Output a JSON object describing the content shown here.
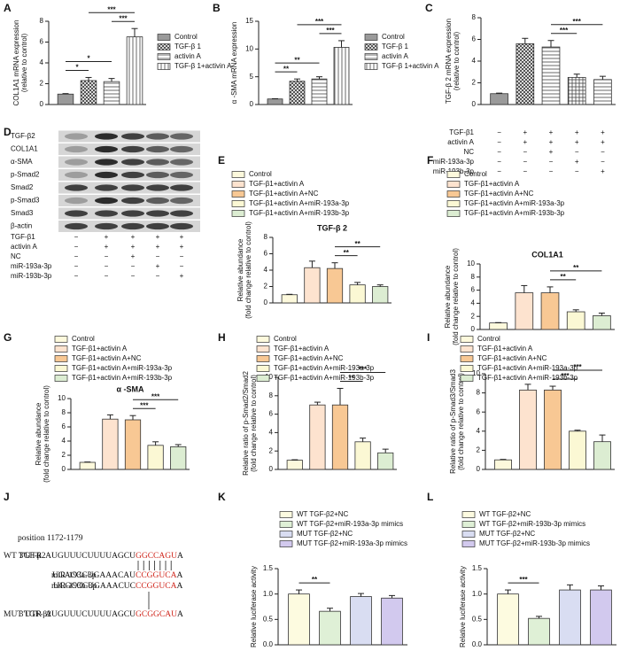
{
  "chart_data": [
    {
      "type": "bar",
      "panel": "A",
      "ylabel": [
        "COL1A1 mRNA expression",
        "(relative to control)"
      ],
      "ylim": [
        0,
        8
      ],
      "yticks": [
        0,
        2,
        4,
        6,
        8
      ],
      "series": [
        {
          "name": "Control",
          "color": "#9a9a9a",
          "pattern": "solid",
          "values": [
            1
          ],
          "errors": [
            0.05
          ]
        },
        {
          "name": "TGF-β 1",
          "color": "#333333",
          "pattern": "crosshatch",
          "values": [
            2.3
          ],
          "errors": [
            0.3
          ]
        },
        {
          "name": "activin A",
          "color": "#444444",
          "pattern": "hlines",
          "values": [
            2.2
          ],
          "errors": [
            0.3
          ]
        },
        {
          "name": "TGF-β 1+activin A",
          "color": "#444444",
          "pattern": "vlines",
          "values": [
            6.5
          ],
          "errors": [
            0.8
          ]
        }
      ],
      "significance": [
        {
          "from": 0,
          "to": 1,
          "label": "*"
        },
        {
          "from": 0,
          "to": 2,
          "label": "*"
        },
        {
          "from": 2,
          "to": 3,
          "label": "***"
        },
        {
          "from": 1,
          "to": 3,
          "label": "***"
        }
      ]
    },
    {
      "type": "bar",
      "panel": "B",
      "ylabel": [
        "α -SMA mRNA expression"
      ],
      "ylim": [
        0,
        15
      ],
      "yticks": [
        0,
        5,
        10,
        15
      ],
      "series": [
        {
          "name": "Control",
          "color": "#9a9a9a",
          "pattern": "solid",
          "values": [
            1
          ],
          "errors": [
            0.05
          ]
        },
        {
          "name": "TGF-β 1",
          "color": "#333333",
          "pattern": "crosshatch",
          "values": [
            4.2
          ],
          "errors": [
            0.4
          ]
        },
        {
          "name": "activin A",
          "color": "#444444",
          "pattern": "hlines",
          "values": [
            4.6
          ],
          "errors": [
            0.4
          ]
        },
        {
          "name": "TGF-β 1+activin A",
          "color": "#444444",
          "pattern": "vlines",
          "values": [
            10.3
          ],
          "errors": [
            1.2
          ]
        }
      ],
      "significance": [
        {
          "from": 0,
          "to": 1,
          "label": "**"
        },
        {
          "from": 0,
          "to": 2,
          "label": "**"
        },
        {
          "from": 2,
          "to": 3,
          "label": "***"
        },
        {
          "from": 1,
          "to": 3,
          "label": "***"
        }
      ]
    },
    {
      "type": "bar",
      "panel": "C",
      "ylabel": [
        "TGF-β 2 mRNA expression",
        "(relative to control)"
      ],
      "ylim": [
        0,
        8
      ],
      "yticks": [
        0,
        2,
        4,
        6,
        8
      ],
      "series": [
        {
          "color": "#9a9a9a",
          "pattern": "solid",
          "values": [
            1
          ],
          "errors": [
            0.05
          ]
        },
        {
          "color": "#333333",
          "pattern": "crosshatch",
          "values": [
            5.6
          ],
          "errors": [
            0.5
          ]
        },
        {
          "color": "#444444",
          "pattern": "hlines",
          "values": [
            5.3
          ],
          "errors": [
            0.6
          ]
        },
        {
          "color": "#444444",
          "pattern": "grid",
          "values": [
            2.5
          ],
          "errors": [
            0.3
          ]
        },
        {
          "color": "#444444",
          "pattern": "hlines",
          "values": [
            2.3
          ],
          "errors": [
            0.3
          ]
        }
      ],
      "significance": [
        {
          "from": 2,
          "to": 3,
          "label": "***"
        },
        {
          "from": 2,
          "to": 4,
          "label": "***"
        }
      ],
      "conditions": [
        {
          "label": "TGF-β1",
          "marks": [
            "−",
            "+",
            "+",
            "+",
            "+"
          ]
        },
        {
          "label": "activin A",
          "marks": [
            "−",
            "+",
            "+",
            "+",
            "+"
          ]
        },
        {
          "label": "NC",
          "marks": [
            "−",
            "−",
            "+",
            "−",
            "−"
          ]
        },
        {
          "label": "miR-193a-3p",
          "marks": [
            "−",
            "−",
            "−",
            "+",
            "−"
          ]
        },
        {
          "label": "miR-193b-3p",
          "marks": [
            "−",
            "−",
            "−",
            "−",
            "+"
          ]
        }
      ]
    },
    {
      "type": "bar",
      "panel": "E",
      "title": "TGF-β 2",
      "ylabel": [
        "Relative abundance",
        "(fold change relative to control)"
      ],
      "ylim": [
        0,
        8
      ],
      "yticks": [
        0,
        2,
        4,
        6,
        8
      ],
      "series": [
        {
          "name": "Control",
          "color": "#fdf9dc",
          "pattern": "solid",
          "values": [
            1
          ],
          "errors": [
            0.05
          ]
        },
        {
          "name": "TGF-β1+activin A",
          "color": "#fde3cf",
          "pattern": "solid",
          "values": [
            4.3
          ],
          "errors": [
            0.8
          ]
        },
        {
          "name": "TGF-β1+activin A+NC",
          "color": "#f8c894",
          "pattern": "solid",
          "values": [
            4.2
          ],
          "errors": [
            0.7
          ]
        },
        {
          "name": "TGF-β1+activin A+miR-193a-3p",
          "color": "#fbf8d4",
          "pattern": "solid",
          "values": [
            2.2
          ],
          "errors": [
            0.3
          ]
        },
        {
          "name": "TGF-β1+activin A+miR-193b-3p",
          "color": "#dcedd2",
          "pattern": "solid",
          "values": [
            2.0
          ],
          "errors": [
            0.2
          ]
        }
      ],
      "significance": [
        {
          "from": 2,
          "to": 3,
          "label": "**"
        },
        {
          "from": 2,
          "to": 4,
          "label": "**"
        }
      ]
    },
    {
      "type": "bar",
      "panel": "F",
      "title": "COL1A1",
      "ylabel": [
        "Relative abundance",
        "(fold change relative to control)"
      ],
      "ylim": [
        0,
        10
      ],
      "yticks": [
        0,
        2,
        4,
        6,
        8,
        10
      ],
      "series": [
        {
          "name": "Control",
          "color": "#fdf9dc",
          "pattern": "solid",
          "values": [
            1
          ],
          "errors": [
            0.05
          ]
        },
        {
          "name": "TGF-β1+activin A",
          "color": "#fde3cf",
          "pattern": "solid",
          "values": [
            5.6
          ],
          "errors": [
            1.1
          ]
        },
        {
          "name": "TGF-β1+activin A+NC",
          "color": "#f8c894",
          "pattern": "solid",
          "values": [
            5.6
          ],
          "errors": [
            0.9
          ]
        },
        {
          "name": "TGF-β1+activin A+miR-193a-3p",
          "color": "#fbf8d4",
          "pattern": "solid",
          "values": [
            2.7
          ],
          "errors": [
            0.3
          ]
        },
        {
          "name": "TGF-β1+activin A+miR-193b-3p",
          "color": "#dcedd2",
          "pattern": "solid",
          "values": [
            2.1
          ],
          "errors": [
            0.4
          ]
        }
      ],
      "significance": [
        {
          "from": 2,
          "to": 3,
          "label": "**"
        },
        {
          "from": 2,
          "to": 4,
          "label": "**"
        }
      ]
    },
    {
      "type": "bar",
      "panel": "G",
      "title": "α -SMA",
      "ylabel": [
        "Relative abundance",
        "(fold change relative to control)"
      ],
      "ylim": [
        0,
        10
      ],
      "yticks": [
        0,
        2,
        4,
        6,
        8,
        10
      ],
      "series": [
        {
          "name": "Control",
          "color": "#fdf9dc",
          "pattern": "solid",
          "values": [
            1
          ],
          "errors": [
            0.05
          ]
        },
        {
          "name": "TGF-β1+activin A",
          "color": "#fde3cf",
          "pattern": "solid",
          "values": [
            7.1
          ],
          "errors": [
            0.6
          ]
        },
        {
          "name": "TGF-β1+activin A+NC",
          "color": "#f8c894",
          "pattern": "solid",
          "values": [
            7.0
          ],
          "errors": [
            0.6
          ]
        },
        {
          "name": "TGF-β1+activin A+miR-193a-3p",
          "color": "#fbf8d4",
          "pattern": "solid",
          "values": [
            3.4
          ],
          "errors": [
            0.5
          ]
        },
        {
          "name": "TGF-β1+activin A+miR-193b-3p",
          "color": "#dcedd2",
          "pattern": "solid",
          "values": [
            3.2
          ],
          "errors": [
            0.3
          ]
        }
      ],
      "significance": [
        {
          "from": 2,
          "to": 3,
          "label": "***"
        },
        {
          "from": 2,
          "to": 4,
          "label": "***"
        }
      ]
    },
    {
      "type": "bar",
      "panel": "H",
      "ylabel": [
        "Relative ratio of p-Smad2/Smad2",
        "(fold change relative to control)"
      ],
      "ylim": [
        0,
        10
      ],
      "yticks": [
        0,
        2,
        4,
        6,
        8,
        10
      ],
      "series": [
        {
          "name": "Control",
          "color": "#fdf9dc",
          "pattern": "solid",
          "values": [
            1
          ],
          "errors": [
            0.05
          ]
        },
        {
          "name": "TGF-β1+activin A",
          "color": "#fde3cf",
          "pattern": "solid",
          "values": [
            7.0
          ],
          "errors": [
            0.3
          ]
        },
        {
          "name": "TGF-β1+activin A+NC",
          "color": "#f8c894",
          "pattern": "solid",
          "values": [
            7.0
          ],
          "errors": [
            1.8
          ]
        },
        {
          "name": "TGF-β1+activin A+miR-193a-3p",
          "color": "#fbf8d4",
          "pattern": "solid",
          "values": [
            3.0
          ],
          "errors": [
            0.4
          ]
        },
        {
          "name": "TGF-β1+activin A+miR-193b-3p",
          "color": "#dcedd2",
          "pattern": "solid",
          "values": [
            1.8
          ],
          "errors": [
            0.4
          ]
        }
      ],
      "significance": [
        {
          "from": 2,
          "to": 3,
          "label": "**"
        },
        {
          "from": 2,
          "to": 4,
          "label": "***"
        }
      ]
    },
    {
      "type": "bar",
      "panel": "I",
      "ylabel": [
        "Relative ratio of p-Smad3/Smad3",
        "(fold change relative to control)"
      ],
      "ylim": [
        0,
        10
      ],
      "yticks": [
        0,
        2,
        4,
        6,
        8,
        10
      ],
      "series": [
        {
          "name": "Control",
          "color": "#fdf9dc",
          "pattern": "solid",
          "values": [
            1
          ],
          "errors": [
            0.05
          ]
        },
        {
          "name": "TGF-β1+activin A",
          "color": "#fde3cf",
          "pattern": "solid",
          "values": [
            8.3
          ],
          "errors": [
            0.6
          ]
        },
        {
          "name": "TGF-β1+activin A+NC",
          "color": "#f8c894",
          "pattern": "solid",
          "values": [
            8.3
          ],
          "errors": [
            0.4
          ]
        },
        {
          "name": "TGF-β1+activin A+miR-193a-3p",
          "color": "#fbf8d4",
          "pattern": "solid",
          "values": [
            4.0
          ],
          "errors": [
            0.1
          ]
        },
        {
          "name": "TGF-β1+activin A+miR-193b-3p",
          "color": "#dcedd2",
          "pattern": "solid",
          "values": [
            2.9
          ],
          "errors": [
            0.7
          ]
        }
      ],
      "significance": [
        {
          "from": 2,
          "to": 3,
          "label": "***"
        },
        {
          "from": 2,
          "to": 4,
          "label": "***"
        }
      ]
    },
    {
      "type": "bar",
      "panel": "K",
      "ylabel": [
        "Relative luciferase activity"
      ],
      "ylim": [
        0,
        1.5
      ],
      "yticks": [
        {
          "value": 0,
          "label": "0.0"
        },
        0.5,
        {
          "value": 1,
          "label": "1.0"
        },
        1.5
      ],
      "series": [
        {
          "name": "WT TGF-β2+NC",
          "color": "#fdfbe0",
          "pattern": "solid",
          "values": [
            1.0
          ],
          "errors": [
            0.08
          ]
        },
        {
          "name": "WT TGF-β2+miR-193a-3p mimics",
          "color": "#dff0d6",
          "pattern": "solid",
          "values": [
            0.66
          ],
          "errors": [
            0.06
          ]
        },
        {
          "name": "MUT TGF-β2+NC",
          "color": "#d9ddf2",
          "pattern": "solid",
          "values": [
            0.95
          ],
          "errors": [
            0.06
          ]
        },
        {
          "name": "MUT TGF-β2+miR-193a-3p mimics",
          "color": "#d2c9ee",
          "pattern": "solid",
          "values": [
            0.92
          ],
          "errors": [
            0.05
          ]
        }
      ],
      "significance": [
        {
          "from": 0,
          "to": 1,
          "label": "**"
        }
      ]
    },
    {
      "type": "bar",
      "panel": "L",
      "ylabel": [
        "Relative luciferase activity"
      ],
      "ylim": [
        0,
        1.5
      ],
      "yticks": [
        {
          "value": 0,
          "label": "0.0"
        },
        0.5,
        {
          "value": 1,
          "label": "1.0"
        },
        1.5
      ],
      "series": [
        {
          "name": "WT TGF-β2+NC",
          "color": "#fdfbe0",
          "pattern": "solid",
          "values": [
            1.0
          ],
          "errors": [
            0.08
          ]
        },
        {
          "name": "WT TGF-β2+miR-193b-3p mimics",
          "color": "#dff0d6",
          "pattern": "solid",
          "values": [
            0.52
          ],
          "errors": [
            0.04
          ]
        },
        {
          "name": "MUT TGF-β2+NC",
          "color": "#d9ddf2",
          "pattern": "solid",
          "values": [
            1.08
          ],
          "errors": [
            0.1
          ]
        },
        {
          "name": "MUT TGF-β2+miR-193b-3p mimics",
          "color": "#d2c9ee",
          "pattern": "solid",
          "values": [
            1.08
          ],
          "errors": [
            0.08
          ]
        }
      ],
      "significance": [
        {
          "from": 0,
          "to": 1,
          "label": "***"
        }
      ]
    }
  ],
  "blot": {
    "panel": "D",
    "proteins": [
      "TGF-β2",
      "COL1A1",
      "α-SMA",
      "p-Smad2",
      "Smad2",
      "p-Smad3",
      "Smad3",
      "β-actin"
    ],
    "conditions": [
      {
        "label": "TGF-β1",
        "marks": [
          "−",
          "+",
          "+",
          "+",
          "+"
        ]
      },
      {
        "label": "activin A",
        "marks": [
          "−",
          "+",
          "+",
          "+",
          "+"
        ]
      },
      {
        "label": "NC",
        "marks": [
          "−",
          "−",
          "+",
          "−",
          "−"
        ]
      },
      {
        "label": "miR-193a-3p",
        "marks": [
          "−",
          "−",
          "−",
          "+",
          "−"
        ]
      },
      {
        "label": "miR-193b-3p",
        "marks": [
          "−",
          "−",
          "−",
          "−",
          "+"
        ]
      }
    ]
  },
  "sequence": {
    "panel": "J",
    "position": "position 1172-1179",
    "rows": [
      {
        "label": "WT  TGF-β2",
        "utr": "3'UTR",
        "seq": "AUGUUUCUUUUAGCU",
        "red": "GGCCAGU",
        "tail": "A"
      },
      {
        "label": "miR-193a-3p",
        "seq": "UGACCCUGAAACAU",
        "red": "CCGGUCA",
        "tail": "A"
      },
      {
        "label": "miR-193b-3p",
        "seq": "UCGCCCUGAAACUC",
        "red": "CCGGUCA",
        "tail": "A"
      },
      {
        "label": "MUT  TGF-β2",
        "utr": "3'UTR",
        "seq": "AUGUUUCUUUUAGCU",
        "red": "GCGGCAU",
        "tail": "A"
      }
    ]
  }
}
